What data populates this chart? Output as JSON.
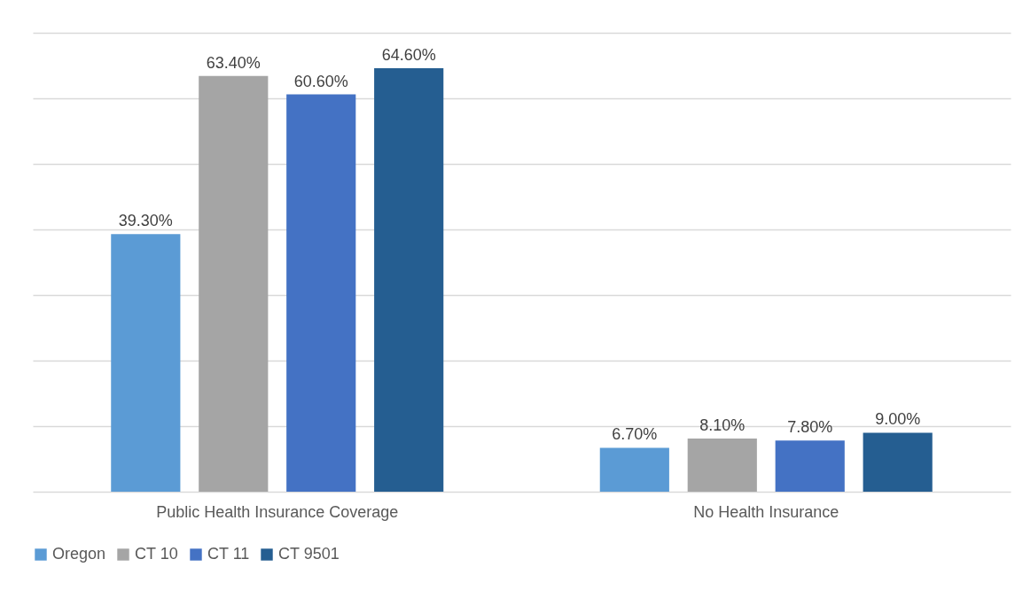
{
  "chart_data": {
    "type": "bar",
    "categories": [
      "Public Health Insurance Coverage",
      "No Health Insurance"
    ],
    "series": [
      {
        "name": "Oregon",
        "color": "#5b9bd5",
        "values": [
          39.3,
          6.7
        ],
        "value_labels": [
          "39.30%",
          "6.70%"
        ]
      },
      {
        "name": "CT 10",
        "color": "#a5a5a5",
        "values": [
          63.4,
          8.1
        ],
        "value_labels": [
          "63.40%",
          "8.10%"
        ]
      },
      {
        "name": "CT 11",
        "color": "#4472c4",
        "values": [
          60.6,
          7.8
        ],
        "value_labels": [
          "60.60%",
          "7.80%"
        ]
      },
      {
        "name": "CT 9501",
        "color": "#255e91",
        "values": [
          64.6,
          9.0
        ],
        "value_labels": [
          "64.60%",
          "9.00%"
        ]
      }
    ],
    "ylim": [
      0,
      70
    ],
    "yticks": [
      {
        "value": 0,
        "label": null
      },
      {
        "value": 10,
        "label": null
      },
      {
        "value": 20,
        "label": null
      },
      {
        "value": 30,
        "label": null
      },
      {
        "value": 40,
        "label": null
      },
      {
        "value": 50,
        "label": null
      },
      {
        "value": 60,
        "label": null
      },
      {
        "value": 70,
        "label": null
      }
    ],
    "grid": "y",
    "legend": "bottom",
    "tick_labels": "x"
  }
}
